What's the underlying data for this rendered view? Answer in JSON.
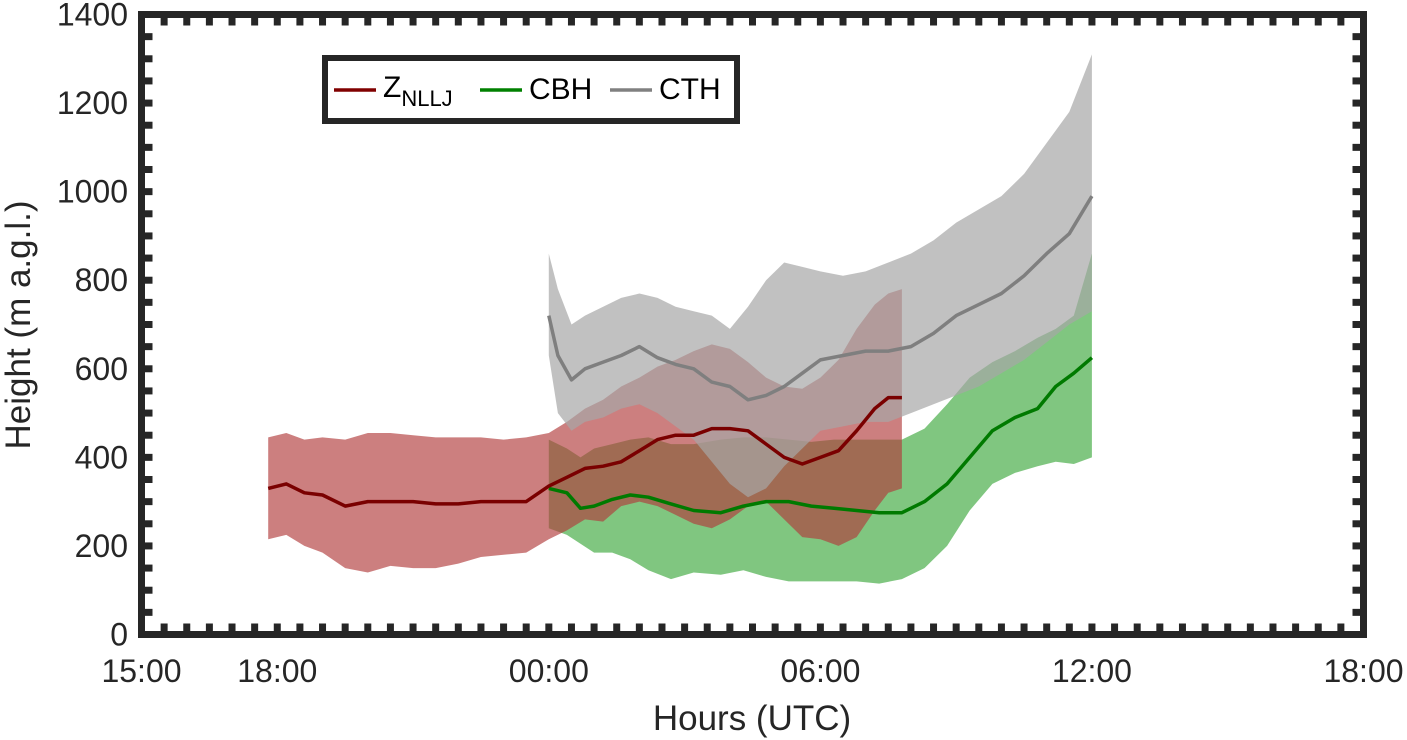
{
  "chart_data": {
    "type": "line",
    "xlabel": "Hours (UTC)",
    "ylabel": "Height (m a.g.l.)",
    "x_unit": "hours",
    "xlim": [
      15,
      42
    ],
    "ylim": [
      0,
      1400
    ],
    "x_ticks": [
      {
        "value": 15,
        "label": "15:00"
      },
      {
        "value": 18,
        "label": "18:00"
      },
      {
        "value": 24,
        "label": "00:00"
      },
      {
        "value": 30,
        "label": "06:00"
      },
      {
        "value": 36,
        "label": "12:00"
      },
      {
        "value": 42,
        "label": "18:00"
      }
    ],
    "y_ticks": [
      {
        "value": 0,
        "label": "0"
      },
      {
        "value": 200,
        "label": "200"
      },
      {
        "value": 400,
        "label": "400"
      },
      {
        "value": 600,
        "label": "600"
      },
      {
        "value": 800,
        "label": "800"
      },
      {
        "value": 1000,
        "label": "1000"
      },
      {
        "value": 1200,
        "label": "1200"
      },
      {
        "value": 1400,
        "label": "1400"
      }
    ],
    "legend": {
      "placement": "top-left",
      "entries": [
        {
          "name_main": "Z",
          "name_sub": "NLLJ",
          "color": "#800000"
        },
        {
          "name_main": "CBH",
          "name_sub": "",
          "color": "#008000"
        },
        {
          "name_main": "CTH",
          "name_sub": "",
          "color": "#808080"
        }
      ]
    },
    "series": [
      {
        "key": "cbh",
        "line_color": "#007a00",
        "band_color": "#2ca02c",
        "band_opacity": 0.6,
        "x": [
          24.0,
          24.4,
          24.7,
          25.0,
          25.4,
          25.8,
          26.2,
          26.7,
          27.2,
          27.8,
          28.3,
          28.8,
          29.3,
          29.8,
          30.3,
          30.8,
          31.3,
          31.8,
          32.3,
          32.8,
          33.3,
          33.8,
          34.3,
          34.8,
          35.2,
          35.6,
          36.0
        ],
        "y": [
          330,
          320,
          285,
          290,
          305,
          315,
          310,
          295,
          280,
          275,
          290,
          300,
          300,
          290,
          285,
          280,
          275,
          275,
          300,
          340,
          400,
          460,
          490,
          510,
          560,
          590,
          625
        ],
        "lower": [
          240,
          225,
          205,
          185,
          185,
          170,
          145,
          125,
          140,
          135,
          145,
          130,
          120,
          120,
          120,
          120,
          115,
          125,
          150,
          200,
          280,
          340,
          365,
          380,
          390,
          385,
          400
        ],
        "upper": [
          440,
          420,
          400,
          420,
          430,
          440,
          445,
          430,
          430,
          440,
          445,
          445,
          440,
          435,
          440,
          440,
          440,
          440,
          465,
          520,
          580,
          615,
          640,
          670,
          690,
          720,
          860
        ]
      },
      {
        "key": "nllj",
        "line_color": "#7a0000",
        "band_color": "#b03a3a",
        "band_opacity": 0.65,
        "x": [
          17.8,
          18.2,
          18.6,
          19.0,
          19.5,
          20.0,
          20.5,
          21.0,
          21.5,
          22.0,
          22.5,
          23.0,
          23.5,
          24.0,
          24.4,
          24.8,
          25.2,
          25.6,
          26.0,
          26.4,
          26.8,
          27.2,
          27.6,
          28.0,
          28.4,
          28.8,
          29.2,
          29.6,
          30.0,
          30.4,
          30.8,
          31.2,
          31.5,
          31.8
        ],
        "y": [
          330,
          340,
          320,
          315,
          290,
          300,
          300,
          300,
          295,
          295,
          300,
          300,
          300,
          335,
          355,
          375,
          380,
          390,
          415,
          440,
          450,
          450,
          465,
          465,
          460,
          430,
          400,
          385,
          400,
          415,
          460,
          510,
          535,
          535
        ],
        "lower": [
          215,
          225,
          200,
          185,
          150,
          140,
          155,
          150,
          150,
          160,
          175,
          180,
          185,
          215,
          235,
          260,
          255,
          290,
          300,
          290,
          270,
          250,
          240,
          260,
          290,
          300,
          260,
          220,
          215,
          200,
          220,
          280,
          320,
          330
        ],
        "upper": [
          445,
          455,
          440,
          445,
          440,
          455,
          455,
          450,
          445,
          445,
          445,
          440,
          445,
          455,
          480,
          510,
          530,
          560,
          580,
          605,
          620,
          640,
          655,
          645,
          615,
          580,
          560,
          555,
          580,
          620,
          690,
          745,
          770,
          780
        ]
      },
      {
        "key": "cth",
        "line_color": "#7f7f7f",
        "band_color": "#a6a6a6",
        "band_opacity": 0.7,
        "x": [
          24.0,
          24.2,
          24.5,
          24.8,
          25.2,
          25.6,
          26.0,
          26.4,
          26.8,
          27.2,
          27.6,
          28.0,
          28.4,
          28.8,
          29.2,
          29.6,
          30.0,
          30.5,
          31.0,
          31.5,
          32.0,
          32.5,
          33.0,
          33.5,
          34.0,
          34.5,
          35.0,
          35.5,
          36.0
        ],
        "y": [
          720,
          630,
          575,
          600,
          615,
          630,
          650,
          625,
          610,
          600,
          570,
          560,
          530,
          540,
          560,
          590,
          620,
          630,
          640,
          640,
          650,
          680,
          720,
          745,
          770,
          810,
          860,
          905,
          990
        ],
        "lower": [
          630,
          500,
          460,
          480,
          490,
          510,
          520,
          500,
          470,
          440,
          390,
          340,
          310,
          330,
          380,
          420,
          460,
          470,
          480,
          480,
          500,
          520,
          540,
          560,
          590,
          620,
          660,
          700,
          730
        ],
        "upper": [
          860,
          780,
          700,
          720,
          740,
          760,
          770,
          760,
          740,
          730,
          720,
          690,
          740,
          800,
          840,
          830,
          820,
          810,
          820,
          840,
          860,
          890,
          930,
          960,
          990,
          1040,
          1110,
          1180,
          1310
        ]
      }
    ]
  }
}
